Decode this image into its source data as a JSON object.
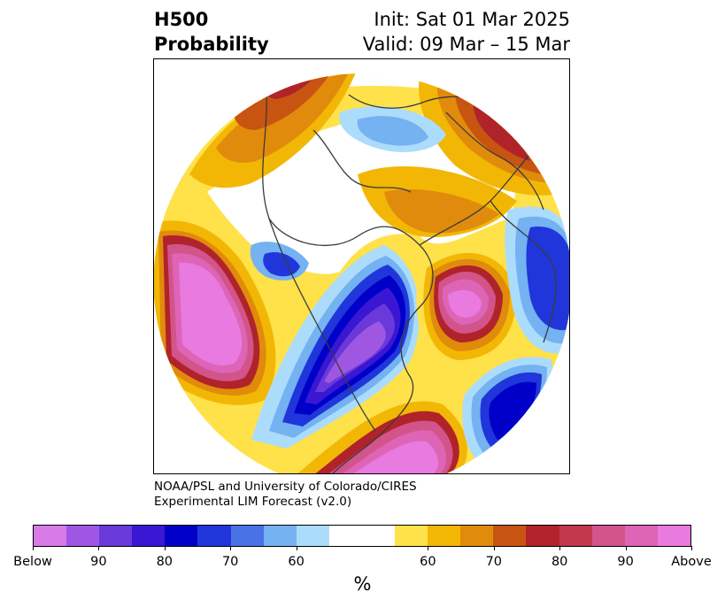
{
  "header": {
    "variable": "H500",
    "product": "Probability",
    "init": "Init: Sat 01 Mar 2025",
    "valid": "Valid: 09 Mar – 15 Mar"
  },
  "credit": {
    "line1": "NOAA/PSL and University of Colorado/CIRES",
    "line2": "Experimental LIM Forecast (v2.0)"
  },
  "colorbar": {
    "unit": "%",
    "colors": [
      "#d87ae8",
      "#9f57e3",
      "#6a39d9",
      "#3917d3",
      "#0000c8",
      "#2036db",
      "#4872e6",
      "#74b2f2",
      "#acdcfb",
      "#ffffff",
      "#ffe14a",
      "#f2b705",
      "#e08b0c",
      "#c85412",
      "#b0232a",
      "#c2384b",
      "#d2548b",
      "#de64b6",
      "#e87ae0"
    ],
    "tick_labels": [
      "Below",
      "90",
      "80",
      "70",
      "60",
      "60",
      "70",
      "80",
      "90",
      "Above"
    ]
  },
  "map": {
    "projection": "north-polar-stereographic",
    "palette": {
      "above_deep": "#e87ae0",
      "above_pink": "#de64b6",
      "above_rose": "#d2548b",
      "above_red": "#c2384b",
      "above_darkred": "#b0232a",
      "above_rust": "#c85412",
      "above_orange": "#e08b0c",
      "above_gold": "#f2b705",
      "above_yellow": "#ffe14a",
      "below_pale": "#acdcfb",
      "below_light": "#74b2f2",
      "below_mid": "#4872e6",
      "below_blue": "#2036db",
      "below_navy": "#0000c8",
      "below_indigo": "#3917d3",
      "below_violet": "#6a39d9",
      "below_purple": "#9f57e3",
      "coastline": "#3a3a3a"
    }
  }
}
